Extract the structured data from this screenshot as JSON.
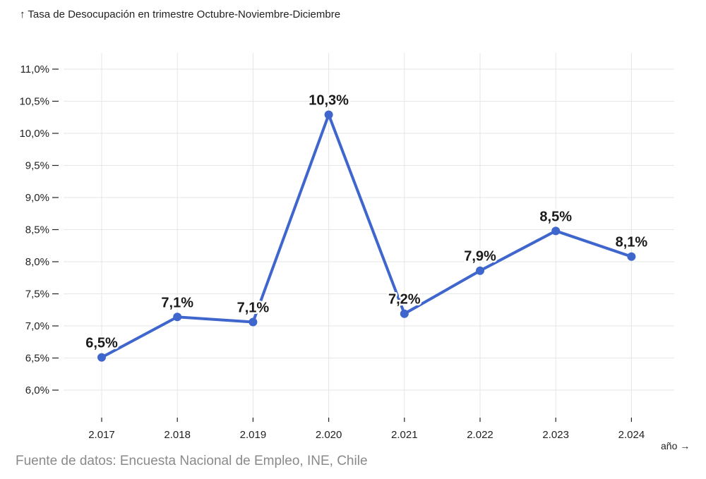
{
  "chart_data": {
    "type": "line",
    "title": "↑ Tasa de Desocupación en trimestre Octubre-Noviembre-Diciembre",
    "xlabel": "año →",
    "ylabel": "",
    "source": "Fuente de datos: Encuesta Nacional de Empleo, INE, Chile",
    "categories": [
      "2.017",
      "2.018",
      "2.019",
      "2.020",
      "2.021",
      "2.022",
      "2.023",
      "2.024"
    ],
    "series": [
      {
        "values": [
          6.51,
          7.14,
          7.06,
          10.29,
          7.19,
          7.86,
          8.48,
          8.08
        ],
        "labels": [
          "6,5%",
          "7,1%",
          "7,1%",
          "10,3%",
          "7,2%",
          "7,9%",
          "8,5%",
          "8,1%"
        ]
      }
    ],
    "y_ticks": [
      6.0,
      6.5,
      7.0,
      7.5,
      8.0,
      8.5,
      9.0,
      9.5,
      10.0,
      10.5,
      11.0
    ],
    "y_tick_labels": [
      "6,0%",
      "6,5%",
      "7,0%",
      "7,5%",
      "8,0%",
      "8,5%",
      "9,0%",
      "9,5%",
      "10,0%",
      "10,5%",
      "11,0%"
    ],
    "ylim": [
      5.55,
      11.5
    ],
    "grid": true,
    "legend": "none",
    "colors": {
      "line": "#3f66cc",
      "grid": "#e6e6e6",
      "axis": "#222222"
    }
  }
}
